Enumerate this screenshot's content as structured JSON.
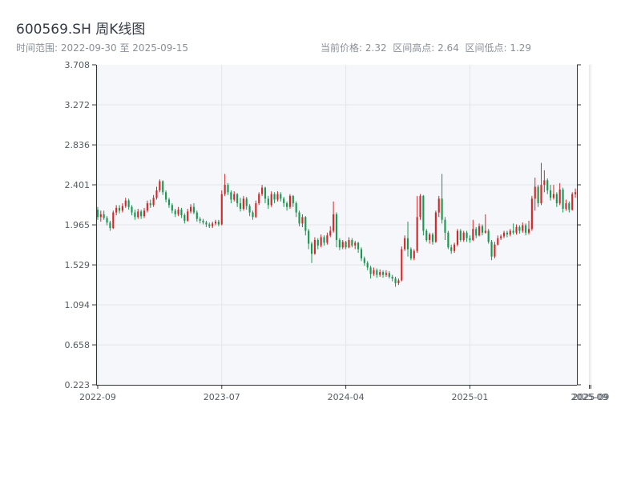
{
  "header": {
    "title": "600569.SH 周K线图",
    "range_label": "时间范围:",
    "range_start": "2022-09-30",
    "range_sep": "至",
    "range_end": "2025-09-15",
    "current_label": "当前价格:",
    "current_value": "2.32",
    "high_label": "区间高点:",
    "high_value": "2.64",
    "low_label": "区间低点:",
    "low_value": "1.29"
  },
  "chart_data": {
    "type": "candlestick",
    "ylim": [
      0.223,
      3.708
    ],
    "y_ticks": [
      "0.223",
      "0.658",
      "1.094",
      "1.529",
      "1.965",
      "2.401",
      "2.836",
      "3.272",
      "3.708"
    ],
    "x_ticks": [
      {
        "label": "2022-09",
        "pos": 0
      },
      {
        "label": "2023-07",
        "pos": 40
      },
      {
        "label": "2024-04",
        "pos": 80
      },
      {
        "label": "2025-01",
        "pos": 120
      },
      {
        "label": "2025-09",
        "pos": 158.5
      },
      {
        "label": "2025-09",
        "pos": 159
      }
    ],
    "up_color": "#d62728",
    "down_color": "#1a9850",
    "candles": [
      [
        2.13,
        2.05,
        2.16,
        2.02
      ],
      [
        2.05,
        2.08,
        2.12,
        2.0
      ],
      [
        2.08,
        2.04,
        2.12,
        2.02
      ],
      [
        2.04,
        1.99,
        2.06,
        1.96
      ],
      [
        1.99,
        1.93,
        2.01,
        1.9
      ],
      [
        1.93,
        2.1,
        2.12,
        1.92
      ],
      [
        2.1,
        2.15,
        2.18,
        2.07
      ],
      [
        2.15,
        2.12,
        2.18,
        2.09
      ],
      [
        2.12,
        2.17,
        2.2,
        2.1
      ],
      [
        2.17,
        2.23,
        2.26,
        2.15
      ],
      [
        2.23,
        2.16,
        2.25,
        2.13
      ],
      [
        2.16,
        2.1,
        2.18,
        2.07
      ],
      [
        2.1,
        2.05,
        2.13,
        2.02
      ],
      [
        2.05,
        2.11,
        2.14,
        2.03
      ],
      [
        2.11,
        2.06,
        2.13,
        2.03
      ],
      [
        2.06,
        2.12,
        2.15,
        2.04
      ],
      [
        2.12,
        2.2,
        2.23,
        2.1
      ],
      [
        2.2,
        2.18,
        2.24,
        2.15
      ],
      [
        2.18,
        2.26,
        2.29,
        2.16
      ],
      [
        2.26,
        2.34,
        2.38,
        2.24
      ],
      [
        2.34,
        2.44,
        2.46,
        2.32
      ],
      [
        2.44,
        2.32,
        2.45,
        2.29
      ],
      [
        2.32,
        2.24,
        2.34,
        2.21
      ],
      [
        2.24,
        2.18,
        2.26,
        2.15
      ],
      [
        2.18,
        2.12,
        2.2,
        2.09
      ],
      [
        2.12,
        2.08,
        2.14,
        2.05
      ],
      [
        2.08,
        2.13,
        2.16,
        2.06
      ],
      [
        2.13,
        2.07,
        2.15,
        2.04
      ],
      [
        2.07,
        2.01,
        2.09,
        1.98
      ],
      [
        2.01,
        2.11,
        2.14,
        2.0
      ],
      [
        2.11,
        2.16,
        2.19,
        2.09
      ],
      [
        2.16,
        2.1,
        2.2,
        2.08
      ],
      [
        2.1,
        2.03,
        2.12,
        2.0
      ],
      [
        2.03,
        2.01,
        2.05,
        1.98
      ],
      [
        2.01,
        1.99,
        2.03,
        1.97
      ],
      [
        1.99,
        1.97,
        2.01,
        1.94
      ],
      [
        1.97,
        1.95,
        1.99,
        1.93
      ],
      [
        1.95,
        1.98,
        2.0,
        1.93
      ],
      [
        1.98,
        2.0,
        2.02,
        1.96
      ],
      [
        2.0,
        1.97,
        2.02,
        1.95
      ],
      [
        1.97,
        2.3,
        2.34,
        1.96
      ],
      [
        2.3,
        2.4,
        2.52,
        2.28
      ],
      [
        2.4,
        2.32,
        2.42,
        2.29
      ],
      [
        2.32,
        2.24,
        2.34,
        2.2
      ],
      [
        2.24,
        2.3,
        2.33,
        2.22
      ],
      [
        2.3,
        2.2,
        2.31,
        2.16
      ],
      [
        2.2,
        2.14,
        2.26,
        2.11
      ],
      [
        2.14,
        2.25,
        2.28,
        2.12
      ],
      [
        2.25,
        2.17,
        2.27,
        2.13
      ],
      [
        2.17,
        2.1,
        2.19,
        2.06
      ],
      [
        2.1,
        2.05,
        2.12,
        2.02
      ],
      [
        2.05,
        2.2,
        2.23,
        2.04
      ],
      [
        2.2,
        2.3,
        2.32,
        2.18
      ],
      [
        2.3,
        2.37,
        2.4,
        2.28
      ],
      [
        2.37,
        2.25,
        2.38,
        2.2
      ],
      [
        2.25,
        2.18,
        2.28,
        2.14
      ],
      [
        2.18,
        2.3,
        2.33,
        2.16
      ],
      [
        2.3,
        2.24,
        2.32,
        2.2
      ],
      [
        2.24,
        2.3,
        2.33,
        2.22
      ],
      [
        2.3,
        2.25,
        2.32,
        2.22
      ],
      [
        2.25,
        2.2,
        2.27,
        2.16
      ],
      [
        2.2,
        2.16,
        2.22,
        2.12
      ],
      [
        2.16,
        2.28,
        2.3,
        2.14
      ],
      [
        2.28,
        2.2,
        2.29,
        2.16
      ],
      [
        2.2,
        2.1,
        2.22,
        2.05
      ],
      [
        2.1,
        1.98,
        2.12,
        1.95
      ],
      [
        1.98,
        2.05,
        2.08,
        1.94
      ],
      [
        2.05,
        1.9,
        2.06,
        1.85
      ],
      [
        1.9,
        1.76,
        1.92,
        1.7
      ],
      [
        1.76,
        1.65,
        1.78,
        1.55
      ],
      [
        1.65,
        1.8,
        1.83,
        1.64
      ],
      [
        1.8,
        1.74,
        1.82,
        1.7
      ],
      [
        1.74,
        1.83,
        1.86,
        1.72
      ],
      [
        1.83,
        1.77,
        1.85,
        1.74
      ],
      [
        1.77,
        1.85,
        1.88,
        1.75
      ],
      [
        1.85,
        1.9,
        1.95,
        1.83
      ],
      [
        1.9,
        2.08,
        2.22,
        1.88
      ],
      [
        2.08,
        1.8,
        2.1,
        1.72
      ],
      [
        1.8,
        1.72,
        1.82,
        1.69
      ],
      [
        1.72,
        1.78,
        1.8,
        1.7
      ],
      [
        1.78,
        1.72,
        1.79,
        1.7
      ],
      [
        1.72,
        1.8,
        1.83,
        1.71
      ],
      [
        1.8,
        1.74,
        1.82,
        1.72
      ],
      [
        1.74,
        1.77,
        1.79,
        1.7
      ],
      [
        1.77,
        1.7,
        1.78,
        1.66
      ],
      [
        1.7,
        1.6,
        1.72,
        1.57
      ],
      [
        1.6,
        1.55,
        1.62,
        1.52
      ],
      [
        1.55,
        1.5,
        1.57,
        1.47
      ],
      [
        1.5,
        1.43,
        1.52,
        1.38
      ],
      [
        1.43,
        1.47,
        1.5,
        1.41
      ],
      [
        1.47,
        1.42,
        1.49,
        1.39
      ],
      [
        1.42,
        1.45,
        1.48,
        1.4
      ],
      [
        1.45,
        1.42,
        1.47,
        1.39
      ],
      [
        1.42,
        1.44,
        1.47,
        1.4
      ],
      [
        1.44,
        1.4,
        1.46,
        1.38
      ],
      [
        1.4,
        1.38,
        1.42,
        1.35
      ],
      [
        1.38,
        1.33,
        1.4,
        1.29
      ],
      [
        1.33,
        1.36,
        1.38,
        1.31
      ],
      [
        1.36,
        1.7,
        1.73,
        1.35
      ],
      [
        1.7,
        1.82,
        1.85,
        1.68
      ],
      [
        1.82,
        1.7,
        2.0,
        1.62
      ],
      [
        1.7,
        1.6,
        1.72,
        1.58
      ],
      [
        1.6,
        1.68,
        1.7,
        1.58
      ],
      [
        1.68,
        2.05,
        2.28,
        1.66
      ],
      [
        2.05,
        2.28,
        2.3,
        2.02
      ],
      [
        2.28,
        1.9,
        2.29,
        1.85
      ],
      [
        1.9,
        1.8,
        1.92,
        1.78
      ],
      [
        1.8,
        1.86,
        1.88,
        1.76
      ],
      [
        1.86,
        1.78,
        1.88,
        1.75
      ],
      [
        1.78,
        2.1,
        2.12,
        1.77
      ],
      [
        2.1,
        2.25,
        2.28,
        2.05
      ],
      [
        2.25,
        2.02,
        2.52,
        1.98
      ],
      [
        2.02,
        1.88,
        2.05,
        1.8
      ],
      [
        1.88,
        1.72,
        1.9,
        1.7
      ],
      [
        1.72,
        1.68,
        1.75,
        1.65
      ],
      [
        1.68,
        1.75,
        1.77,
        1.66
      ],
      [
        1.75,
        1.9,
        1.92,
        1.73
      ],
      [
        1.9,
        1.8,
        1.92,
        1.78
      ],
      [
        1.8,
        1.88,
        1.9,
        1.78
      ],
      [
        1.88,
        1.82,
        1.9,
        1.78
      ],
      [
        1.82,
        1.8,
        1.85,
        1.77
      ],
      [
        1.8,
        1.92,
        2.02,
        1.79
      ],
      [
        1.92,
        1.85,
        1.94,
        1.82
      ],
      [
        1.85,
        1.95,
        1.98,
        1.84
      ],
      [
        1.95,
        1.88,
        1.97,
        1.85
      ],
      [
        1.88,
        1.9,
        2.08,
        1.87
      ],
      [
        1.9,
        1.78,
        1.92,
        1.76
      ],
      [
        1.78,
        1.62,
        1.8,
        1.58
      ],
      [
        1.62,
        1.75,
        1.78,
        1.6
      ],
      [
        1.75,
        1.82,
        1.85,
        1.74
      ],
      [
        1.82,
        1.84,
        1.86,
        1.8
      ],
      [
        1.84,
        1.88,
        1.9,
        1.82
      ],
      [
        1.88,
        1.86,
        1.9,
        1.83
      ],
      [
        1.86,
        1.9,
        1.92,
        1.84
      ],
      [
        1.9,
        1.88,
        1.98,
        1.86
      ],
      [
        1.88,
        1.94,
        1.97,
        1.86
      ],
      [
        1.94,
        1.9,
        1.96,
        1.87
      ],
      [
        1.9,
        1.96,
        1.99,
        1.88
      ],
      [
        1.96,
        1.88,
        1.98,
        1.85
      ],
      [
        1.88,
        1.92,
        2.01,
        1.86
      ],
      [
        1.92,
        2.25,
        2.28,
        1.9
      ],
      [
        2.25,
        2.38,
        2.48,
        2.12
      ],
      [
        2.38,
        2.2,
        2.4,
        2.16
      ],
      [
        2.2,
        2.4,
        2.64,
        2.18
      ],
      [
        2.4,
        2.45,
        2.56,
        2.32
      ],
      [
        2.45,
        2.34,
        2.47,
        2.3
      ],
      [
        2.34,
        2.26,
        2.4,
        2.23
      ],
      [
        2.26,
        2.3,
        2.4,
        2.24
      ],
      [
        2.3,
        2.2,
        2.32,
        2.16
      ],
      [
        2.2,
        2.35,
        2.42,
        2.18
      ],
      [
        2.35,
        2.14,
        2.37,
        2.1
      ],
      [
        2.14,
        2.2,
        2.24,
        2.12
      ],
      [
        2.2,
        2.13,
        2.22,
        2.1
      ],
      [
        2.13,
        2.3,
        2.32,
        2.12
      ],
      [
        2.3,
        2.32,
        2.36,
        2.26
      ]
    ]
  }
}
